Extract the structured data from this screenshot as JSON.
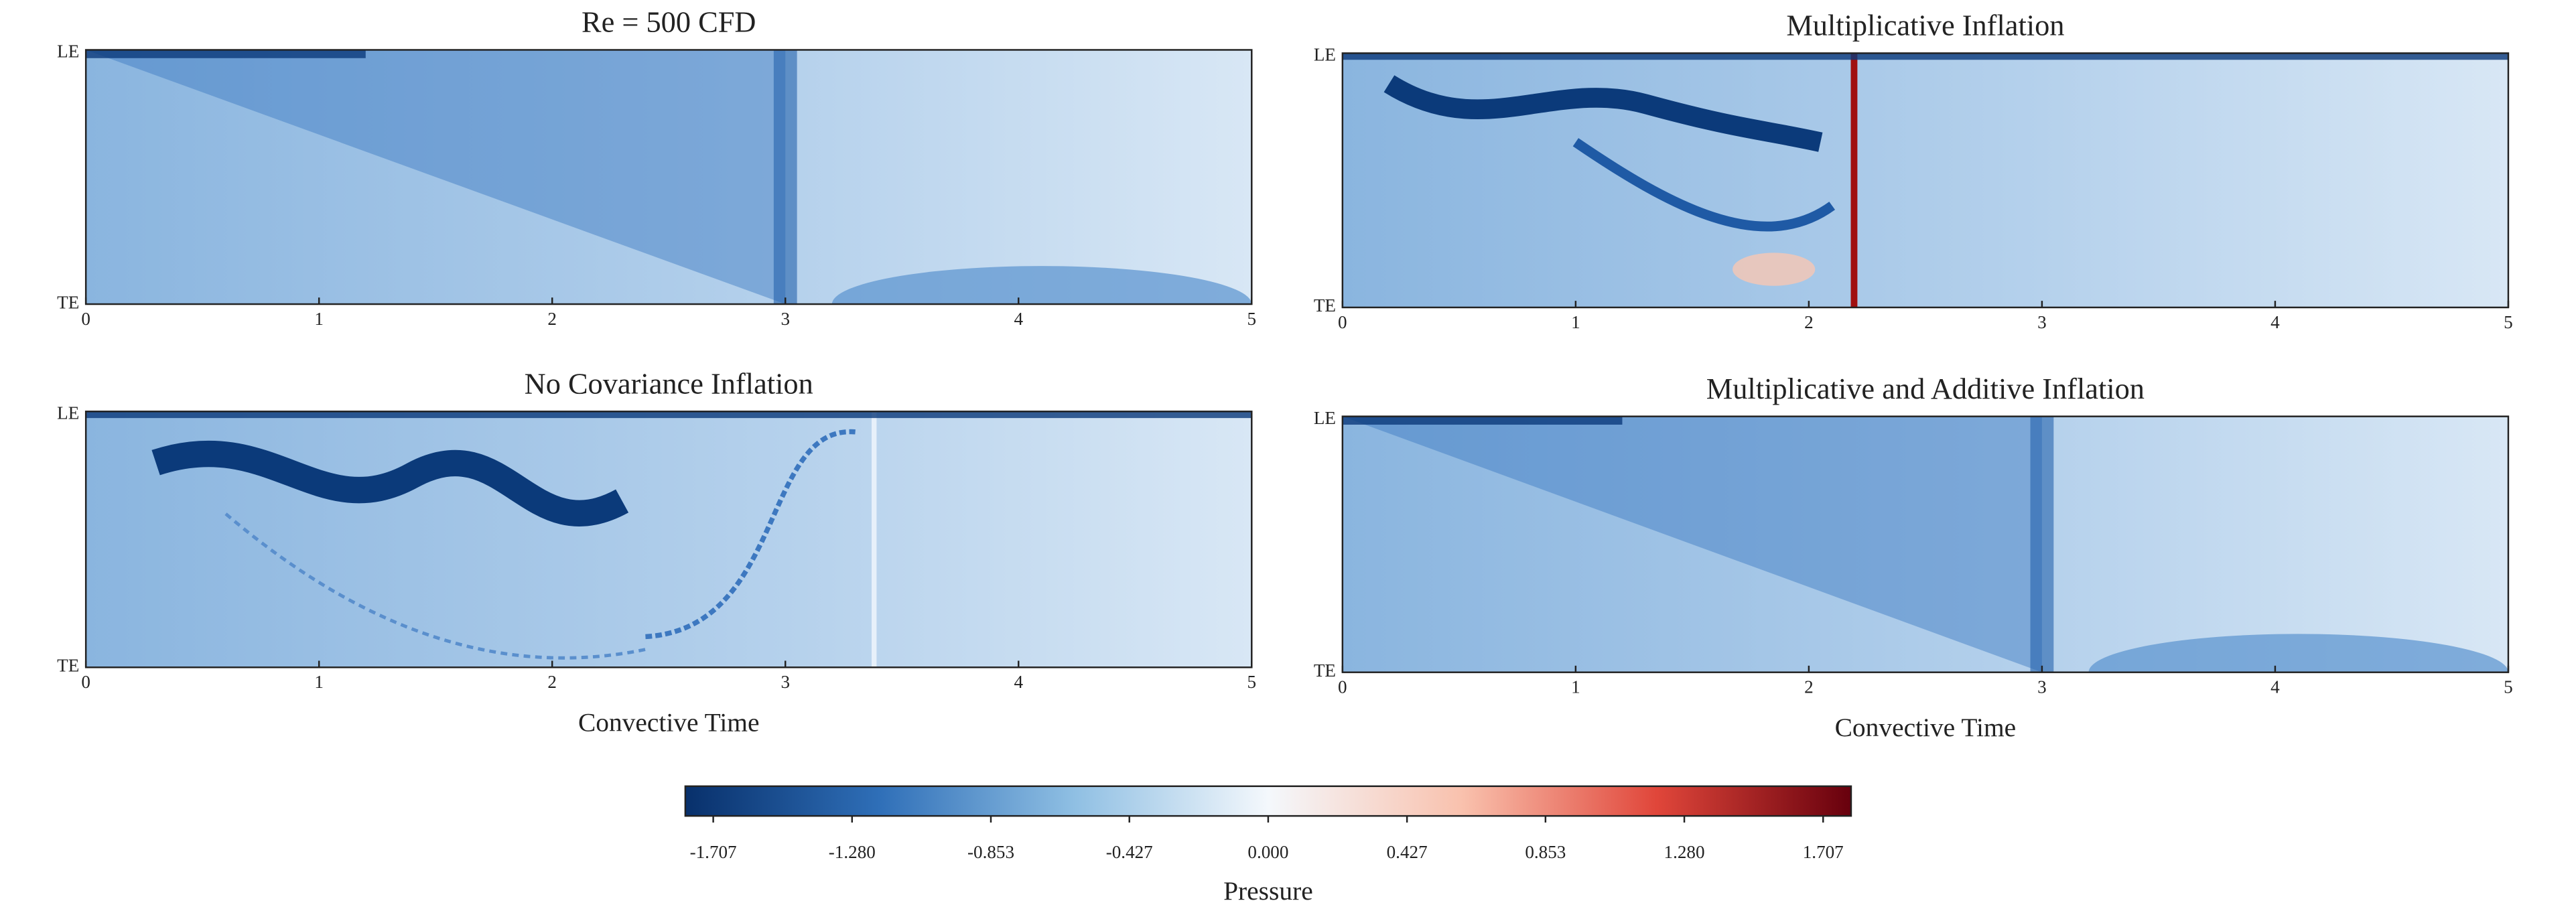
{
  "chart_data": [
    {
      "type": "heatmap",
      "title": "Re = 500 CFD",
      "xlim": [
        0,
        5
      ],
      "xticks": [
        0,
        1,
        2,
        3,
        4,
        5
      ],
      "y_categories": [
        "LE",
        "TE"
      ]
    },
    {
      "type": "heatmap",
      "title": "Multiplicative Inflation",
      "xlim": [
        0,
        5
      ],
      "xticks": [
        0,
        1,
        2,
        3,
        4,
        5
      ],
      "y_categories": [
        "LE",
        "TE"
      ]
    },
    {
      "type": "heatmap",
      "title": "No Covariance Inflation",
      "xlabel": "Convective Time",
      "xlim": [
        0,
        5
      ],
      "xticks": [
        0,
        1,
        2,
        3,
        4,
        5
      ],
      "y_categories": [
        "LE",
        "TE"
      ]
    },
    {
      "type": "heatmap",
      "title": "Multiplicative and Additive Inflation",
      "xlabel": "Convective Time",
      "xlim": [
        0,
        5
      ],
      "xticks": [
        0,
        1,
        2,
        3,
        4,
        5
      ],
      "y_categories": [
        "LE",
        "TE"
      ]
    }
  ],
  "colorbar": {
    "label": "Pressure",
    "lim": [
      -1.793,
      1.793
    ],
    "ticks": [
      -1.707,
      {
        "value": -1.28,
        "label": "-1.280"
      },
      -0.853,
      -0.427,
      {
        "value": 0,
        "label": "0.000"
      },
      0.427,
      0.853,
      {
        "value": 1.28,
        "label": "1.280"
      },
      1.707
    ],
    "colors": [
      "#08306b",
      "#2f6fb8",
      "#8fbfe3",
      "#f4f8fc",
      "#f9c1ad",
      "#e0463a",
      "#67000d"
    ]
  }
}
